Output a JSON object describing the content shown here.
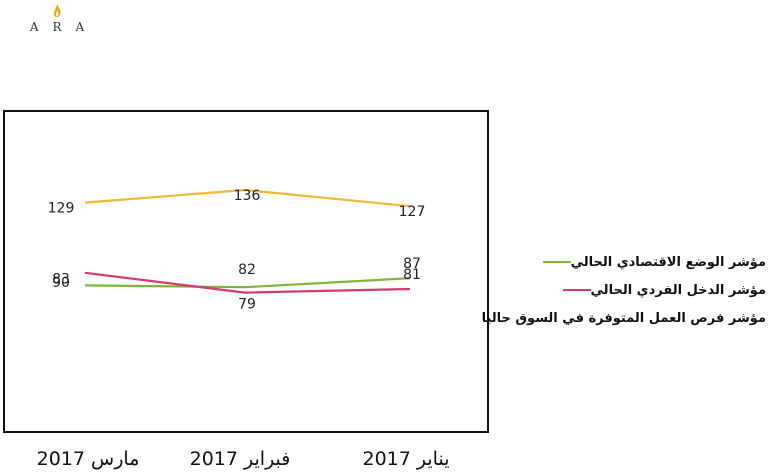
{
  "logo": {
    "text": "ARA",
    "flame_color": "#e6a817"
  },
  "chart_data": {
    "type": "line",
    "categories": [
      "مارس 2017",
      "فبراير 2017",
      "يناير 2017"
    ],
    "series": [
      {
        "name": "مؤشر الوضع الاقتصادي الحالي",
        "color": "#78b83c",
        "values": [
          83,
          82,
          87
        ]
      },
      {
        "name": "مؤشر الدخل الفردي الحالي",
        "color": "#d63a6e",
        "values": [
          90,
          79,
          81
        ]
      },
      {
        "name": "مؤشر فرص العمل المتوفرة في السوق حاليا",
        "color": "#f2b636",
        "values": [
          129,
          136,
          127
        ]
      }
    ],
    "legend_position": "right",
    "grid": false
  }
}
